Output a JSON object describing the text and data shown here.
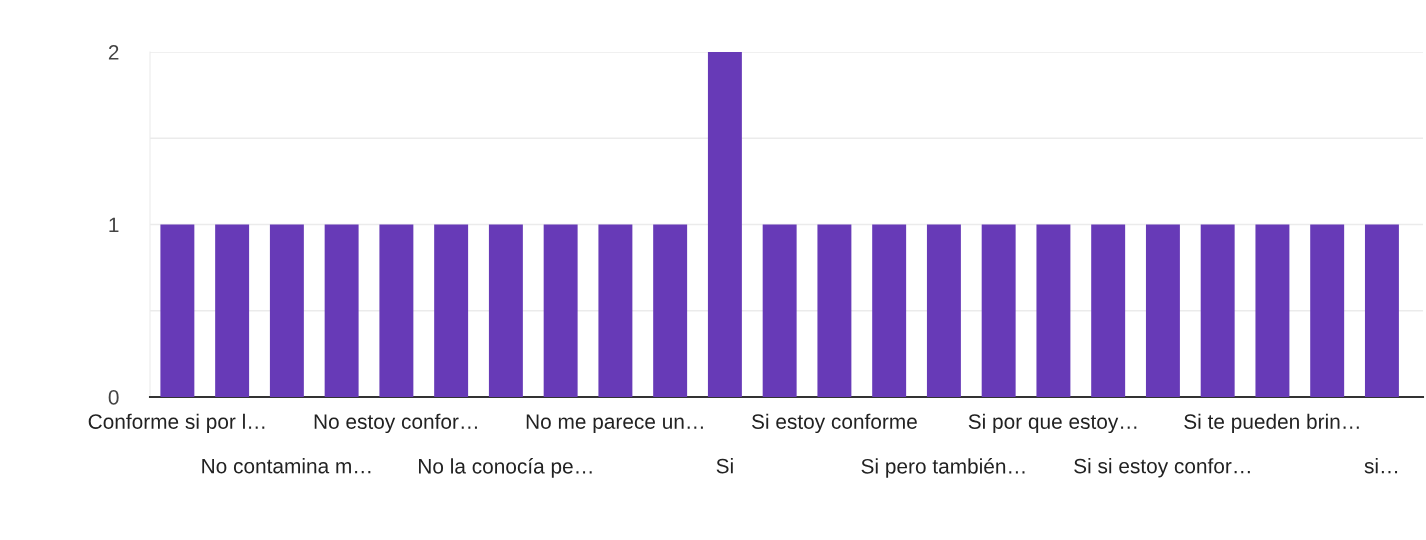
{
  "chart_data": {
    "type": "bar",
    "categories": [
      "Conforme si por l…",
      null,
      "No contamina m…",
      null,
      "No estoy confor…",
      null,
      "No la conocía pe…",
      null,
      "No me parece un…",
      null,
      "Si",
      null,
      "Si estoy conforme",
      null,
      "Si pero también…",
      null,
      "Si por que estoy…",
      null,
      "Si si estoy confor…",
      null,
      "Si te pueden brin…",
      null,
      "si…"
    ],
    "values": [
      1,
      1,
      1,
      1,
      1,
      1,
      1,
      1,
      1,
      1,
      2,
      1,
      1,
      1,
      1,
      1,
      1,
      1,
      1,
      1,
      1,
      1,
      1
    ],
    "color": "#673ab7",
    "ylim": [
      0,
      2
    ],
    "yticks": [
      0,
      {
        "value": 0.5,
        "label": null
      },
      1,
      {
        "value": 1.5,
        "label": null
      },
      2
    ],
    "grid": "y"
  }
}
